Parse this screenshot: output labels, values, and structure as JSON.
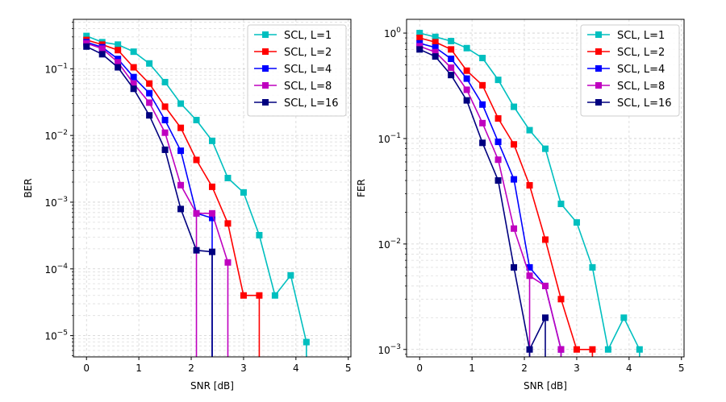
{
  "chart_data": [
    {
      "type": "line",
      "xlabel": "SNR [dB]",
      "ylabel": "BER",
      "yscale": "log",
      "xlim": [
        -0.25,
        5.05
      ],
      "ylim": [
        4.8e-06,
        0.55
      ],
      "xticks": [
        0,
        1,
        2,
        3,
        4,
        5
      ],
      "yticks": [
        {
          "value": 0.1,
          "base": "10",
          "exp": "−1"
        },
        {
          "value": 0.01,
          "base": "10",
          "exp": "−2"
        },
        {
          "value": 0.001,
          "base": "10",
          "exp": "−3"
        },
        {
          "value": 0.0001,
          "base": "10",
          "exp": "−4"
        },
        {
          "value": 1e-05,
          "base": "10",
          "exp": "−5"
        }
      ],
      "grid": true,
      "legend_position": "top-right",
      "series": [
        {
          "name": "SCL, L=1",
          "color": "#00bfbf",
          "points": [
            [
              0,
              0.31
            ],
            [
              0.3,
              0.25
            ],
            [
              0.6,
              0.23
            ],
            [
              0.9,
              0.18
            ],
            [
              1.2,
              0.12
            ],
            [
              1.5,
              0.063
            ],
            [
              1.8,
              0.03
            ],
            [
              2.1,
              0.017
            ],
            [
              2.4,
              0.0083
            ],
            [
              2.7,
              0.0023
            ],
            [
              3.0,
              0.0014
            ],
            [
              3.3,
              0.00032
            ],
            [
              3.6,
              4e-05
            ],
            [
              3.9,
              8e-05
            ],
            [
              4.2,
              8e-06
            ]
          ],
          "drop_to_axis_at": 4.2
        },
        {
          "name": "SCL, L=2",
          "color": "#ff0000",
          "points": [
            [
              0,
              0.27
            ],
            [
              0.3,
              0.23
            ],
            [
              0.6,
              0.19
            ],
            [
              0.9,
              0.105
            ],
            [
              1.2,
              0.06
            ],
            [
              1.5,
              0.027
            ],
            [
              1.8,
              0.013
            ],
            [
              2.1,
              0.0043
            ],
            [
              2.4,
              0.0017
            ],
            [
              2.7,
              0.00048
            ],
            [
              3.0,
              4e-05
            ],
            [
              3.3,
              4e-05
            ]
          ],
          "drop_to_axis_at": 3.3
        },
        {
          "name": "SCL, L=4",
          "color": "#0000ff",
          "points": [
            [
              0,
              0.25
            ],
            [
              0.3,
              0.21
            ],
            [
              0.6,
              0.14
            ],
            [
              0.9,
              0.075
            ],
            [
              1.2,
              0.043
            ],
            [
              1.5,
              0.017
            ],
            [
              1.8,
              0.0059
            ],
            [
              2.1,
              0.00068
            ],
            [
              2.4,
              0.00058
            ]
          ],
          "drop_to_axis_at": 2.4
        },
        {
          "name": "SCL, L=8",
          "color": "#bf00bf",
          "points": [
            [
              0,
              0.24
            ],
            [
              0.3,
              0.2
            ],
            [
              0.6,
              0.125
            ],
            [
              0.9,
              0.06
            ],
            [
              1.2,
              0.031
            ],
            [
              1.5,
              0.011
            ],
            [
              1.8,
              0.0018
            ],
            [
              2.1,
              0.00068
            ],
            [
              2.4,
              0.00068
            ],
            [
              2.7,
              0.000125
            ]
          ],
          "drop_to_axis_at": [
            2.1,
            2.7
          ]
        },
        {
          "name": "SCL, L=16",
          "color": "#00007f",
          "points": [
            [
              0,
              0.215
            ],
            [
              0.3,
              0.165
            ],
            [
              0.6,
              0.105
            ],
            [
              0.9,
              0.05
            ],
            [
              1.2,
              0.02
            ],
            [
              1.5,
              0.0061
            ],
            [
              1.8,
              0.00079
            ],
            [
              2.1,
              0.00019
            ],
            [
              2.4,
              0.00018
            ]
          ],
          "drop_to_axis_at": 2.4
        }
      ]
    },
    {
      "type": "line",
      "xlabel": "SNR [dB]",
      "ylabel": "FER",
      "yscale": "log",
      "xlim": [
        -0.25,
        5.05
      ],
      "ylim": [
        0.00085,
        1.35
      ],
      "xticks": [
        0,
        1,
        2,
        3,
        4,
        5
      ],
      "yticks": [
        {
          "value": 1,
          "base": "10",
          "exp": "0"
        },
        {
          "value": 0.1,
          "base": "10",
          "exp": "−1"
        },
        {
          "value": 0.01,
          "base": "10",
          "exp": "−2"
        },
        {
          "value": 0.001,
          "base": "10",
          "exp": "−3"
        }
      ],
      "grid": true,
      "legend_position": "top-right",
      "series": [
        {
          "name": "SCL, L=1",
          "color": "#00bfbf",
          "points": [
            [
              0,
              1.0
            ],
            [
              0.3,
              0.92
            ],
            [
              0.6,
              0.84
            ],
            [
              0.9,
              0.72
            ],
            [
              1.2,
              0.58
            ],
            [
              1.5,
              0.36
            ],
            [
              1.8,
              0.2
            ],
            [
              2.1,
              0.12
            ],
            [
              2.4,
              0.08
            ],
            [
              2.7,
              0.024
            ],
            [
              3.0,
              0.016
            ],
            [
              3.3,
              0.006
            ],
            [
              3.6,
              0.001
            ],
            [
              3.9,
              0.002
            ],
            [
              4.2,
              0.001
            ]
          ],
          "drop_to_axis_at": 4.2
        },
        {
          "name": "SCL, L=2",
          "color": "#ff0000",
          "points": [
            [
              0,
              0.9
            ],
            [
              0.3,
              0.82
            ],
            [
              0.6,
              0.7
            ],
            [
              0.9,
              0.44
            ],
            [
              1.2,
              0.32
            ],
            [
              1.5,
              0.155
            ],
            [
              1.8,
              0.088
            ],
            [
              2.1,
              0.036
            ],
            [
              2.4,
              0.011
            ],
            [
              2.7,
              0.003
            ],
            [
              3.0,
              0.001
            ],
            [
              3.3,
              0.001
            ]
          ],
          "drop_to_axis_at": 3.3
        },
        {
          "name": "SCL, L=4",
          "color": "#0000ff",
          "points": [
            [
              0,
              0.8
            ],
            [
              0.3,
              0.73
            ],
            [
              0.6,
              0.57
            ],
            [
              0.9,
              0.37
            ],
            [
              1.2,
              0.21
            ],
            [
              1.5,
              0.093
            ],
            [
              1.8,
              0.041
            ],
            [
              2.1,
              0.006
            ],
            [
              2.4,
              0.004
            ],
            [
              2.7,
              0.001
            ]
          ],
          "drop_to_axis_at": 2.7
        },
        {
          "name": "SCL, L=8",
          "color": "#bf00bf",
          "points": [
            [
              0,
              0.75
            ],
            [
              0.3,
              0.66
            ],
            [
              0.6,
              0.47
            ],
            [
              0.9,
              0.29
            ],
            [
              1.2,
              0.14
            ],
            [
              1.5,
              0.063
            ],
            [
              1.8,
              0.014
            ],
            [
              2.1,
              0.005
            ],
            [
              2.4,
              0.004
            ],
            [
              2.7,
              0.001
            ]
          ],
          "drop_to_axis_at": [
            2.1,
            2.7
          ]
        },
        {
          "name": "SCL, L=16",
          "color": "#00007f",
          "points": [
            [
              0,
              0.7
            ],
            [
              0.3,
              0.6
            ],
            [
              0.6,
              0.4
            ],
            [
              0.9,
              0.23
            ],
            [
              1.2,
              0.091
            ],
            [
              1.5,
              0.04
            ],
            [
              1.8,
              0.006
            ],
            [
              2.1,
              0.001
            ],
            [
              2.4,
              0.002
            ]
          ],
          "drop_to_axis_at": [
            2.1,
            2.4
          ]
        }
      ]
    }
  ]
}
